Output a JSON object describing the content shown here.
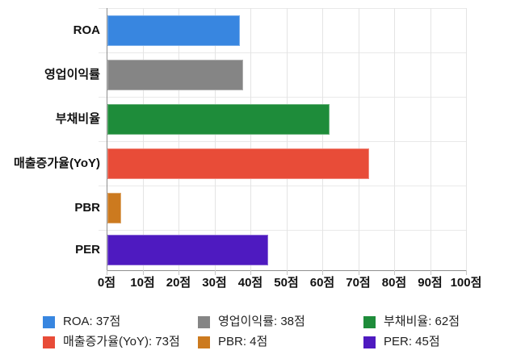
{
  "chart_data": {
    "type": "bar",
    "orientation": "horizontal",
    "title": "",
    "xlabel": "",
    "ylabel": "",
    "categories": [
      "ROA",
      "영업이익률",
      "부채비율",
      "매출증가율(YoY)",
      "PBR",
      "PER"
    ],
    "values": [
      37,
      38,
      62,
      73,
      4,
      45
    ],
    "colors": [
      "#3886e0",
      "#858585",
      "#1e8c3a",
      "#e84c38",
      "#cc7a1f",
      "#4e1ac0"
    ],
    "xlim": [
      0,
      100
    ],
    "x_ticks": [
      0,
      10,
      20,
      30,
      40,
      50,
      60,
      70,
      80,
      90,
      100
    ],
    "tick_suffix": "점",
    "grid": true,
    "legend_position": "bottom",
    "legend": [
      "ROA: 37점",
      "영업이익률: 38점",
      "부채비율: 62점",
      "매출증가율(YoY): 73점",
      "PBR: 4점",
      "PER: 45점"
    ]
  }
}
